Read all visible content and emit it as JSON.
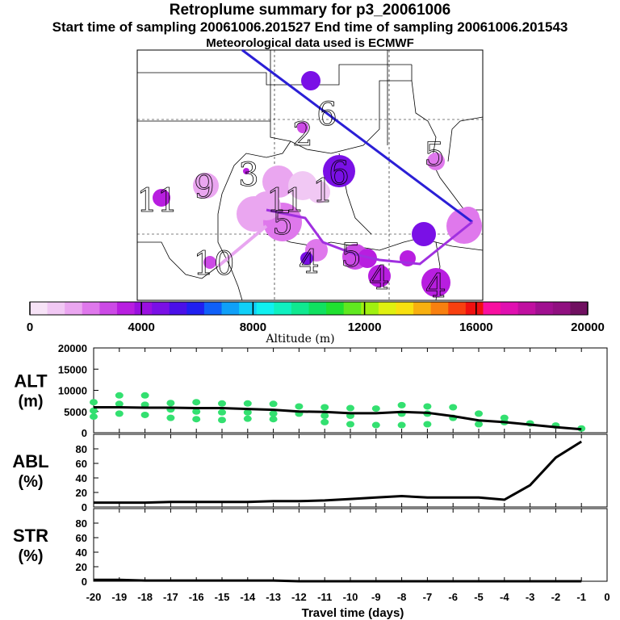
{
  "header": {
    "title": "Retroplume summary for p3_20061006",
    "subtitle": "Start time of sampling 20061006.201527     End time of sampling 20061006.201543",
    "met": "Meteorological data used is ECMWF"
  },
  "colors": {
    "trajectory": "#2b1fd6",
    "alt_cloud": "#33e070",
    "line": "#000000",
    "colorbar": [
      "#f7e3f7",
      "#f1c8f4",
      "#eaa6f0",
      "#df78ec",
      "#cc4ae6",
      "#b81ee0",
      "#9a10e0",
      "#7a10e6",
      "#4a10e8",
      "#2020f0",
      "#1060f8",
      "#10a0f8",
      "#10d0f8",
      "#10f0f0",
      "#10f0c0",
      "#10e890",
      "#10e060",
      "#20e030",
      "#60e820",
      "#a0f010",
      "#e0f010",
      "#f8e010",
      "#f8b010",
      "#f88010",
      "#f84010",
      "#f01010",
      "#f810a0",
      "#e010b0",
      "#c010a0",
      "#a01090",
      "#901080",
      "#701060"
    ]
  },
  "map": {
    "plume_labels": [
      "6",
      "2",
      "3",
      "1",
      "6",
      "5",
      "9",
      "11",
      "1",
      "1",
      "5",
      "10",
      "4",
      "4",
      "5",
      "4"
    ]
  },
  "colorbar": {
    "ticks": [
      "0",
      "4000",
      "8000",
      "12000",
      "16000",
      "20000"
    ],
    "label": "Altitude (m)"
  },
  "chart_data": [
    {
      "type": "line",
      "name": "ALT",
      "ylabel": "ALT\n(m)",
      "ylim": [
        0,
        20000
      ],
      "yticks": [
        "0",
        "5000",
        "10000",
        "15000",
        "20000"
      ],
      "x": [
        -20,
        -19,
        -18,
        -17,
        -16,
        -15,
        -14,
        -13,
        -12,
        -11,
        -10,
        -9,
        -8,
        -7,
        -6,
        -5,
        -4,
        -3,
        -2,
        -1
      ],
      "values": [
        6000,
        6000,
        5900,
        5900,
        5800,
        5800,
        5600,
        5400,
        5000,
        4900,
        4600,
        4600,
        4900,
        4700,
        3900,
        2900,
        2500,
        1900,
        1300,
        800
      ],
      "spread_points": [
        [
          -20,
          7200
        ],
        [
          -20,
          5200
        ],
        [
          -20,
          3800
        ],
        [
          -19,
          8800
        ],
        [
          -19,
          6800
        ],
        [
          -19,
          4500
        ],
        [
          -18,
          8800
        ],
        [
          -18,
          6600
        ],
        [
          -18,
          4200
        ],
        [
          -17,
          7000
        ],
        [
          -17,
          5500
        ],
        [
          -17,
          3500
        ],
        [
          -16,
          7200
        ],
        [
          -16,
          5000
        ],
        [
          -16,
          3200
        ],
        [
          -15,
          6900
        ],
        [
          -15,
          4800
        ],
        [
          -15,
          3000
        ],
        [
          -14,
          6900
        ],
        [
          -14,
          4800
        ],
        [
          -14,
          3300
        ],
        [
          -13,
          6800
        ],
        [
          -13,
          4500
        ],
        [
          -13,
          3200
        ],
        [
          -12,
          6200
        ],
        [
          -12,
          4500
        ],
        [
          -11,
          6000
        ],
        [
          -11,
          4000
        ],
        [
          -11,
          2500
        ],
        [
          -10,
          5800
        ],
        [
          -10,
          4000
        ],
        [
          -10,
          2000
        ],
        [
          -9,
          5700
        ],
        [
          -9,
          1800
        ],
        [
          -8,
          6500
        ],
        [
          -8,
          4500
        ],
        [
          -8,
          1800
        ],
        [
          -7,
          6200
        ],
        [
          -7,
          4500
        ],
        [
          -7,
          2000
        ],
        [
          -6,
          6000
        ],
        [
          -6,
          3500
        ],
        [
          -5,
          4500
        ],
        [
          -5,
          2000
        ],
        [
          -4,
          3500
        ],
        [
          -4,
          2500
        ],
        [
          -3,
          2200
        ],
        [
          -2,
          1700
        ],
        [
          -1,
          1000
        ]
      ]
    },
    {
      "type": "line",
      "name": "ABL",
      "ylabel": "ABL\n(%)",
      "ylim": [
        0,
        100
      ],
      "yticks": [
        "0",
        "20",
        "40",
        "60",
        "80"
      ],
      "x": [
        -20,
        -19,
        -18,
        -17,
        -16,
        -15,
        -14,
        -13,
        -12,
        -11,
        -10,
        -9,
        -8,
        -7,
        -6,
        -5,
        -4,
        -3,
        -2,
        -1
      ],
      "values": [
        6,
        6,
        6,
        7,
        7,
        7,
        7,
        8,
        8,
        9,
        11,
        13,
        15,
        13,
        13,
        13,
        10,
        30,
        68,
        90
      ]
    },
    {
      "type": "line",
      "name": "STR",
      "ylabel": "STR\n(%)",
      "ylim": [
        0,
        100
      ],
      "yticks": [
        "0",
        "20",
        "40",
        "60",
        "80"
      ],
      "x": [
        -20,
        -19,
        -18,
        -17,
        -16,
        -15,
        -14,
        -13,
        -12,
        -11,
        -10,
        -9,
        -8,
        -7,
        -6,
        -5,
        -4,
        -3,
        -2,
        -1
      ],
      "values": [
        2,
        2,
        1,
        1,
        1,
        1,
        1,
        1,
        0,
        0,
        0,
        0,
        0,
        0,
        0,
        0,
        0,
        0,
        0,
        0
      ]
    }
  ],
  "xaxis": {
    "ticks": [
      "-20",
      "-19",
      "-18",
      "-17",
      "-16",
      "-15",
      "-14",
      "-13",
      "-12",
      "-11",
      "-10",
      "-9",
      "-8",
      "-7",
      "-6",
      "-5",
      "-4",
      "-3",
      "-2",
      "-1",
      "0"
    ],
    "label": "Travel time (days)"
  }
}
